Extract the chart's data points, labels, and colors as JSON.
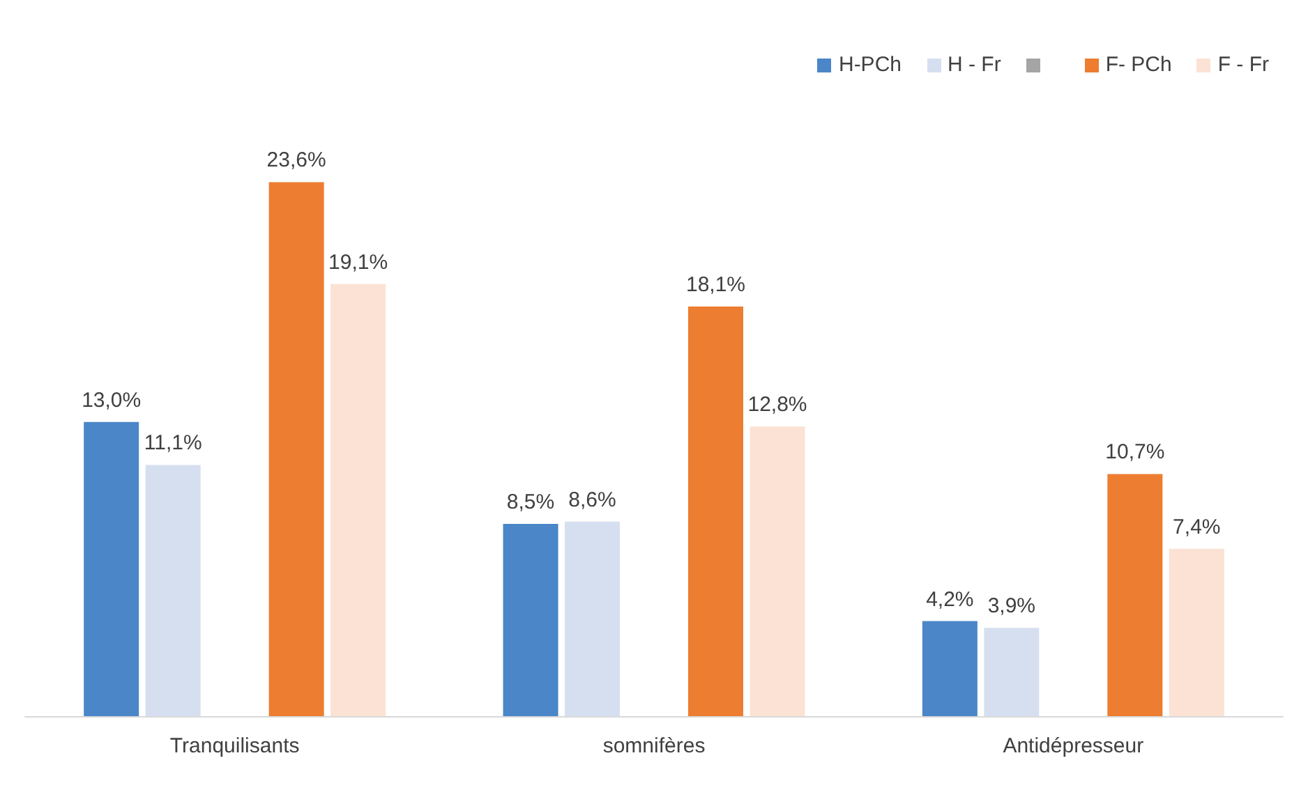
{
  "chart_data": {
    "type": "bar",
    "categories": [
      "Tranquilisants",
      "somnifères",
      "Antidépresseur"
    ],
    "series": [
      {
        "name": "H-PCh",
        "color": "#4a86c8",
        "values": [
          13.0,
          8.5,
          4.2
        ],
        "value_labels": [
          "13,0%",
          "8,5%",
          "4,2%"
        ]
      },
      {
        "name": "H - Fr",
        "color": "#d6dff0",
        "values": [
          11.1,
          8.6,
          3.9
        ],
        "value_labels": [
          "11,1%",
          "8,6%",
          "3,9%"
        ]
      },
      {
        "color": "#a5a5a5",
        "values": [
          null,
          null,
          null
        ]
      },
      {
        "name": "F- PCh",
        "color": "#ed7d31",
        "values": [
          23.6,
          18.1,
          10.7
        ],
        "value_labels": [
          "23,6%",
          "18,1%",
          "10,7%"
        ]
      },
      {
        "name": "F - Fr",
        "color": "#fbe2d5",
        "values": [
          19.1,
          12.8,
          7.4
        ],
        "value_labels": [
          "19,1%",
          "12,8%",
          "7,4%"
        ]
      }
    ],
    "legend": "top right",
    "grid": false
  }
}
